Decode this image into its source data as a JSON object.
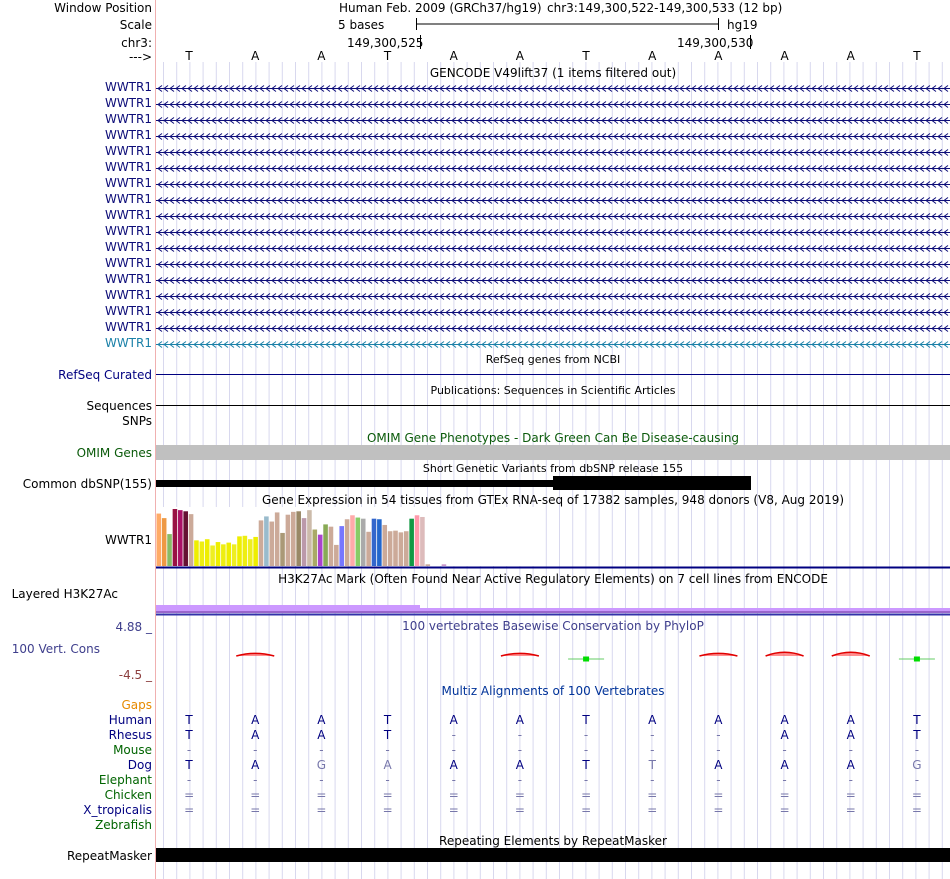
{
  "header": {
    "window_position_label": "Window Position",
    "scale_label": "Scale",
    "chrom_label": "chr3:",
    "strand_label": "--->",
    "assembly_text": "Human Feb. 2009 (GRCh37/hg19)",
    "position_text": "chr3:149,300,522-149,300,533 (12 bp)",
    "scale_text": "5 bases",
    "db_text": "hg19",
    "coord_1": "149,300,525",
    "coord_2": "149,300,530"
  },
  "sequence": [
    "T",
    "A",
    "A",
    "T",
    "A",
    "A",
    "T",
    "A",
    "A",
    "A",
    "A",
    "T"
  ],
  "gencode": {
    "title": "GENCODE V49lift37 (1 items filtered out)",
    "items": [
      "WWTR1",
      "WWTR1",
      "WWTR1",
      "WWTR1",
      "WWTR1",
      "WWTR1",
      "WWTR1",
      "WWTR1",
      "WWTR1",
      "WWTR1",
      "WWTR1",
      "WWTR1",
      "WWTR1",
      "WWTR1",
      "WWTR1",
      "WWTR1",
      "WWTR1"
    ],
    "dark_color": "#0c0c78",
    "last_color": "#1a80a8"
  },
  "refseq": {
    "title": "RefSeq genes from NCBI",
    "label": "RefSeq Curated"
  },
  "publications": {
    "title": "Publications: Sequences in Scientific Articles",
    "label": "Sequences"
  },
  "snps": {
    "label": "SNPs"
  },
  "omim": {
    "title": "OMIM Gene Phenotypes - Dark Green Can Be Disease-causing",
    "label": "OMIM Genes",
    "color": "#0a5a0a"
  },
  "dbsnp": {
    "title": "Short Genetic Variants from dbSNP release 155",
    "label": "Common dbSNP(155)"
  },
  "gtex": {
    "title": "Gene Expression in 54 tissues from GTEx RNA-seq of 17382 samples, 948 donors (V8, Aug 2019)",
    "label": "WWTR1",
    "values": [
      0.92,
      0.84,
      0.56,
      1.0,
      0.98,
      0.96,
      0.91,
      0.45,
      0.43,
      0.47,
      0.36,
      0.42,
      0.38,
      0.41,
      0.38,
      0.52,
      0.53,
      0.47,
      0.51,
      0.8,
      0.87,
      0.78,
      0.94,
      0.58,
      0.9,
      0.95,
      0.96,
      0.84,
      0.98,
      0.64,
      0.55,
      0.73,
      0.69,
      0.37,
      0.7,
      0.82,
      0.89,
      0.85,
      0.83,
      0.6,
      0.83,
      0.82,
      0.72,
      0.61,
      0.62,
      0.59,
      0.61,
      0.83,
      0.89,
      0.86,
      0.03,
      0.0,
      0.0,
      0.03
    ],
    "colors": [
      "#ffaa66",
      "#ee9944",
      "#88bb66",
      "#991144",
      "#aa1166",
      "#661133",
      "#ccaa99",
      "#eeee00",
      "#eeee11",
      "#eeee00",
      "#eeee22",
      "#eeee00",
      "#eeee11",
      "#eeee00",
      "#eeee22",
      "#eeee00",
      "#eeee11",
      "#eeee22",
      "#eeee00",
      "#ccaa99",
      "#99bbcc",
      "#ccaa99",
      "#ccaa99",
      "#aa9977",
      "#ccaa99",
      "#ccaa99",
      "#998866",
      "#bb99aa",
      "#ccbbaa",
      "#aaaa66",
      "#aa44cc",
      "#88aa55",
      "#ccaa99",
      "#ccaa99",
      "#7777ff",
      "#ccaa99",
      "#ffaaaa",
      "#88cc66",
      "#aaaaaa",
      "#ccaa99",
      "#3366cc",
      "#2266cc",
      "#ccaa99",
      "#ccaa99",
      "#ccaa99",
      "#ccaa99",
      "#ccaa99",
      "#119944",
      "#ff99aa",
      "#ddbbbb",
      "#ccaa99",
      "#ccaa99",
      "#ccaa99",
      "#cc99cc"
    ]
  },
  "h3k27ac": {
    "title": "H3K27Ac Mark (Often Found Near Active Regulatory Elements) on 7 cell lines from ENCODE",
    "label": "Layered H3K27Ac"
  },
  "conservation": {
    "title": "100 vertebrates Basewise Conservation by PhyloP",
    "label": "100 Vert. Cons",
    "max_label": "4.88 _",
    "min_label": "-4.5 _",
    "values": [
      0.0,
      0.55,
      0.0,
      0.0,
      0.0,
      0.55,
      -0.8,
      0.0,
      0.55,
      0.9,
      0.9,
      -0.8
    ],
    "title_color": "#3e3e8c",
    "max_color": "#3e3e8c",
    "min_color": "#8c3e3e"
  },
  "multiz": {
    "title": "Multiz Alignments of 100 Vertebrates",
    "title_color": "#003399",
    "gaps_label": "Gaps",
    "gaps_color": "#e68a00",
    "species": [
      {
        "name": "Human",
        "color": "#000080",
        "bases": [
          "T",
          "A",
          "A",
          "T",
          "A",
          "A",
          "T",
          "A",
          "A",
          "A",
          "A",
          "T"
        ],
        "shade": [
          0,
          0,
          0,
          0,
          0,
          0,
          0,
          0,
          0,
          0,
          0,
          0
        ]
      },
      {
        "name": "Rhesus",
        "color": "#000080",
        "bases": [
          "T",
          "A",
          "A",
          "T",
          "-",
          "-",
          "-",
          "-",
          "-",
          "A",
          "A",
          "T"
        ],
        "shade": [
          0,
          0,
          0,
          0,
          1,
          1,
          1,
          1,
          1,
          0,
          0,
          0
        ]
      },
      {
        "name": "Mouse",
        "color": "#006400",
        "bases": [
          "-",
          "-",
          "-",
          "-",
          "-",
          "-",
          "-",
          "-",
          "-",
          "-",
          "-",
          "-"
        ],
        "shade": [
          1,
          1,
          1,
          1,
          1,
          1,
          1,
          1,
          1,
          1,
          1,
          1
        ]
      },
      {
        "name": "Dog",
        "color": "#000080",
        "bases": [
          "T",
          "A",
          "G",
          "A",
          "A",
          "A",
          "T",
          "T",
          "A",
          "A",
          "A",
          "G"
        ],
        "shade": [
          0,
          0,
          1,
          1,
          0,
          0,
          0,
          1,
          0,
          0,
          0,
          1
        ]
      },
      {
        "name": "Elephant",
        "color": "#006400",
        "bases": [
          "-",
          "-",
          "-",
          "-",
          "-",
          "-",
          "-",
          "-",
          "-",
          "-",
          "-",
          "-"
        ],
        "shade": [
          1,
          1,
          1,
          1,
          1,
          1,
          1,
          1,
          1,
          1,
          1,
          1
        ]
      },
      {
        "name": "Chicken",
        "color": "#006400",
        "bases": [
          "=",
          "=",
          "=",
          "=",
          "=",
          "=",
          "=",
          "=",
          "=",
          "=",
          "=",
          "="
        ],
        "shade": [
          1,
          1,
          1,
          1,
          1,
          1,
          1,
          1,
          1,
          1,
          1,
          1
        ]
      },
      {
        "name": "X_tropicalis",
        "color": "#000080",
        "bases": [
          "=",
          "=",
          "=",
          "=",
          "=",
          "=",
          "=",
          "=",
          "=",
          "=",
          "=",
          "="
        ],
        "shade": [
          1,
          1,
          1,
          1,
          1,
          1,
          1,
          1,
          1,
          1,
          1,
          1
        ]
      },
      {
        "name": "Zebrafish",
        "color": "#006400",
        "bases": [
          "",
          "",
          "",
          "",
          "",
          "",
          "",
          "",
          "",
          "",
          "",
          ""
        ],
        "shade": [
          1,
          1,
          1,
          1,
          1,
          1,
          1,
          1,
          1,
          1,
          1,
          1
        ]
      }
    ]
  },
  "repeatmasker": {
    "title": "Repeating Elements by RepeatMasker",
    "label": "RepeatMasker"
  },
  "colors": {
    "grid": "#d8d8ee",
    "divider": "#f0b0b0",
    "omim_bar": "#c0c0c0",
    "h3k27ac_light": "#cc99ff",
    "h3k27ac_dark": "#9966cc",
    "h3k27ac_line": "#3333aa",
    "navy": "#000080",
    "light_base": "#7777aa"
  }
}
